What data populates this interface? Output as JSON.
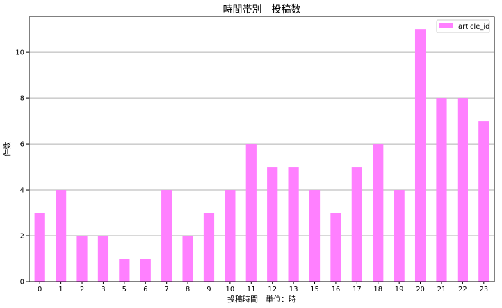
{
  "chart_data": {
    "type": "bar",
    "title": "時間帯別　投稿数",
    "xlabel": "投稿時間　単位：時",
    "ylabel": "件数",
    "categories": [
      "0",
      "1",
      "2",
      "3",
      "5",
      "6",
      "7",
      "8",
      "9",
      "10",
      "11",
      "12",
      "13",
      "15",
      "16",
      "17",
      "18",
      "19",
      "20",
      "21",
      "22",
      "23"
    ],
    "series": [
      {
        "name": "article_id",
        "values": [
          3,
          4,
          2,
          2,
          1,
          1,
          4,
          2,
          3,
          4,
          6,
          5,
          5,
          4,
          3,
          5,
          6,
          4,
          11,
          8,
          8,
          7
        ]
      }
    ],
    "ylim": [
      0,
      11.55
    ],
    "yticks": [
      0,
      2,
      4,
      6,
      8,
      10
    ],
    "grid": "y",
    "legend": "top-right",
    "bar_color": "#ff80ff",
    "grid_color": "#b0b0b0"
  }
}
